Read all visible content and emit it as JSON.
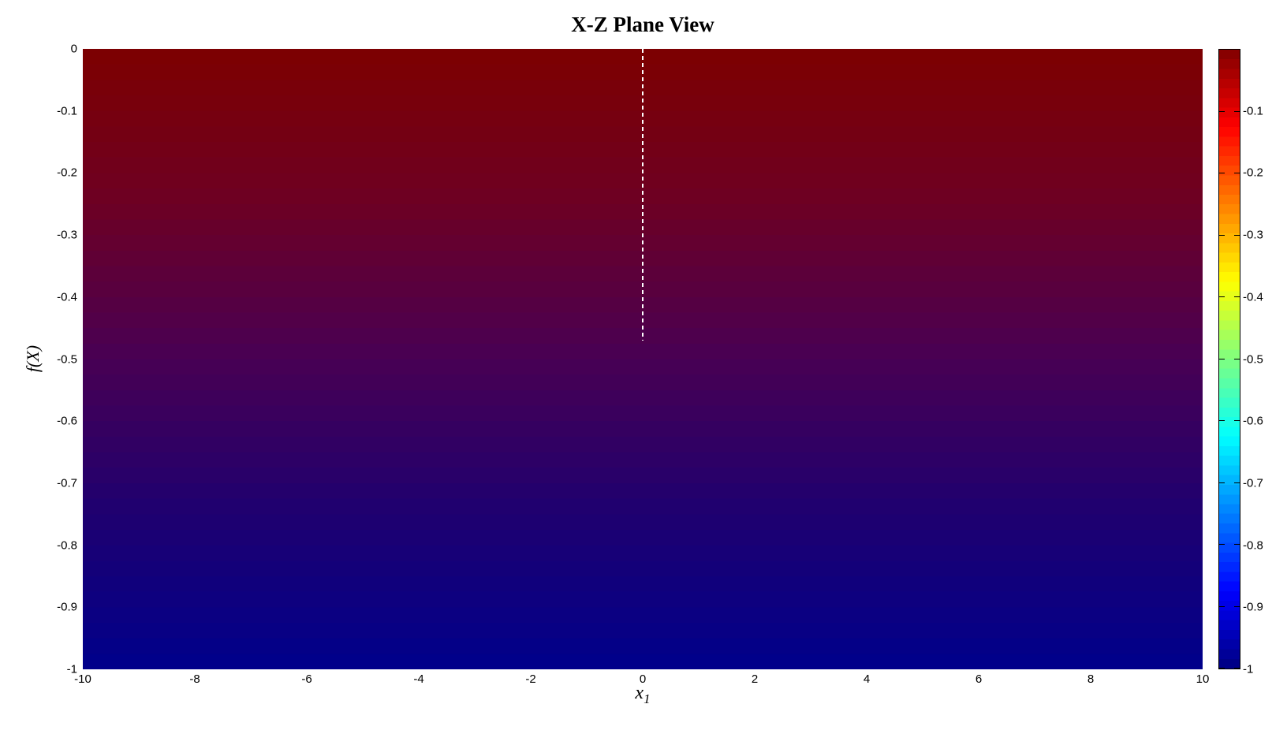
{
  "figure": {
    "background": "#FFFFFF"
  },
  "chart_data": {
    "type": "heatmap",
    "title": "X-Z Plane View",
    "xlabel": "x",
    "xlabel_subscript": "1",
    "ylabel": "f(X)",
    "xlim": [
      -10,
      10
    ],
    "ylim": [
      -1,
      0
    ],
    "grid": false,
    "x_tick_labels": [
      "-10",
      "-8",
      "-6",
      "-4",
      "-2",
      "0",
      "2",
      "4",
      "6",
      "8",
      "10"
    ],
    "y_tick_labels": [
      "0",
      "-0.1",
      "-0.2",
      "-0.3",
      "-0.4",
      "-0.5",
      "-0.6",
      "-0.7",
      "-0.8",
      "-0.9",
      "-1"
    ],
    "plane_gradient": {
      "description": "surface color by f value, f=0 at top to f=-1 at bottom",
      "bands": 40,
      "stops": [
        {
          "pos": 0.0,
          "color": "#7D0000"
        },
        {
          "pos": 0.24,
          "color": "#6E0022"
        },
        {
          "pos": 0.49,
          "color": "#4A0052"
        },
        {
          "pos": 0.75,
          "color": "#1E0070"
        },
        {
          "pos": 1.0,
          "color": "#00008B"
        }
      ]
    },
    "colorbar": {
      "colormap": "jet",
      "segments": 64,
      "range_top": 0,
      "range_bottom": -1,
      "tick_values": [
        -0.1,
        -0.2,
        -0.3,
        -0.4,
        -0.5,
        -0.6,
        -0.7,
        -0.8,
        -0.9,
        -1
      ],
      "tick_labels": [
        "-0.1",
        "-0.2",
        "-0.3",
        "-0.4",
        "-0.5",
        "-0.6",
        "-0.7",
        "-0.8",
        "-0.9",
        "-1"
      ],
      "stops": [
        {
          "pos": 0.0,
          "color": "#800000"
        },
        {
          "pos": 0.125,
          "color": "#FF0000"
        },
        {
          "pos": 0.375,
          "color": "#FFFF00"
        },
        {
          "pos": 0.625,
          "color": "#00FFFF"
        },
        {
          "pos": 0.875,
          "color": "#0000FF"
        },
        {
          "pos": 1.0,
          "color": "#000080"
        }
      ]
    },
    "dashed_line": {
      "x": 0,
      "f_from": 0,
      "f_to": -0.47,
      "color": "#FFFFFF",
      "style": "dashed"
    }
  }
}
